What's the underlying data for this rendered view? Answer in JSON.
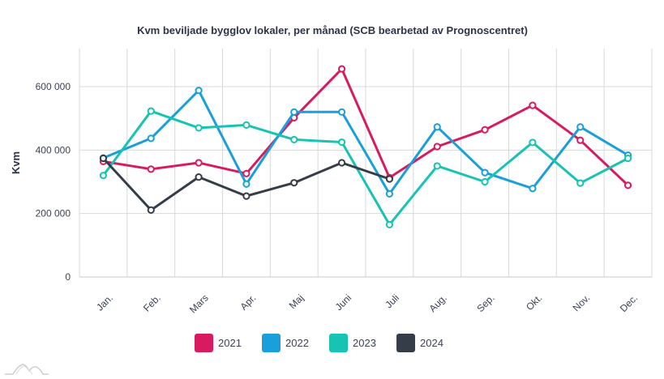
{
  "chart_data": {
    "type": "line",
    "title": "Kvm beviljade bygglov lokaler, per månad (SCB bearbetad av Prognoscentret)",
    "xlabel": "",
    "ylabel": "Kvm",
    "ylim": [
      0,
      720000
    ],
    "yticks": [
      0,
      200000,
      400000,
      600000
    ],
    "ytick_labels": [
      "0",
      "200 000",
      "400 000",
      "600 000"
    ],
    "grid": true,
    "legend_position": "bottom",
    "categories": [
      "Jan.",
      "Feb.",
      "Mars",
      "Apr.",
      "Maj",
      "Juni",
      "Juli",
      "Aug.",
      "Sep.",
      "Okt.",
      "Nov.",
      "Dec."
    ],
    "series": [
      {
        "name": "2021",
        "color": "#d81b60",
        "values": [
          364000,
          340000,
          360000,
          326000,
          502000,
          656000,
          313000,
          411000,
          464000,
          541000,
          431000,
          289000
        ]
      },
      {
        "name": "2022",
        "color": "#1a9fdb",
        "values": [
          375000,
          437000,
          588000,
          293000,
          520000,
          520000,
          262000,
          473000,
          329000,
          279000,
          473000,
          384000
        ]
      },
      {
        "name": "2023",
        "color": "#17c3b2",
        "values": [
          320000,
          523000,
          470000,
          479000,
          433000,
          425000,
          165000,
          350000,
          300000,
          424000,
          296000,
          374000
        ]
      },
      {
        "name": "2024",
        "color": "#343d48",
        "values": [
          374000,
          211000,
          315000,
          255000,
          297000,
          360000,
          309000,
          null,
          null,
          null,
          null,
          null
        ]
      }
    ]
  }
}
